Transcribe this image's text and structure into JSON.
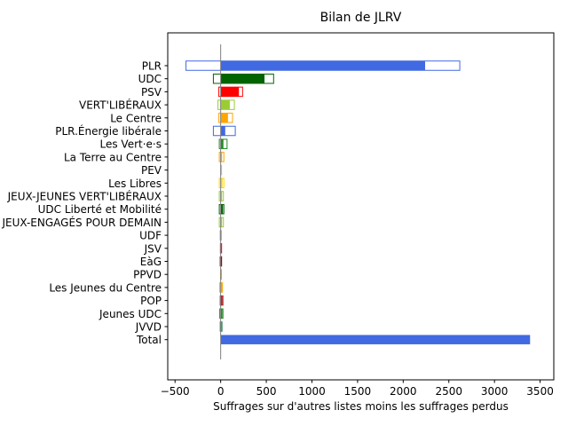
{
  "chart_data": {
    "type": "bar",
    "orientation": "horizontal",
    "title": "Bilan de JLRV",
    "xlabel": "Suffrages sur d'autres listes moins les suffrages perdus",
    "ylabel": "",
    "xlim": [
      -580,
      3650
    ],
    "xticks": [
      -500,
      0,
      500,
      1000,
      1500,
      2000,
      2500,
      3000,
      3500
    ],
    "grid": false,
    "categories": [
      "PLR",
      "UDC",
      "PSV",
      "VERT'LIBÉRAUX",
      "Le Centre",
      "PLR.Énergie libérale",
      "Les Vert·e·s",
      "La Terre au Centre",
      "PEV",
      "Les Libres",
      "JEUX-JEUNES VERT'LIBÉRAUX",
      "UDC Liberté et Mobilité",
      "JEUX-ENGAGÉS POUR DEMAIN",
      "UDF",
      "JSV",
      "EàG",
      "PPVD",
      "Les Jeunes du Centre",
      "POP",
      "Jeunes UDC",
      "JVVD",
      "Total"
    ],
    "series": [
      {
        "role": "net_filled",
        "values": [
          2240,
          480,
          200,
          100,
          80,
          50,
          30,
          15,
          5,
          20,
          15,
          25,
          15,
          5,
          8,
          10,
          5,
          15,
          20,
          18,
          10,
          3390
        ]
      },
      {
        "role": "gross_outline",
        "negative": [
          -380,
          -80,
          -20,
          -30,
          -20,
          -80,
          -15,
          -15,
          0,
          -15,
          -15,
          -15,
          -15,
          -5,
          -3,
          -5,
          -2,
          -10,
          -5,
          -10,
          -5,
          0
        ],
        "positive": [
          2620,
          580,
          240,
          150,
          130,
          160,
          70,
          35,
          5,
          35,
          30,
          35,
          30,
          5,
          10,
          10,
          5,
          20,
          25,
          25,
          15,
          0
        ]
      }
    ],
    "colors": [
      "#4169E1",
      "#006400",
      "#FF0000",
      "#9ACD32",
      "#FFA500",
      "#4169E1",
      "#228B22",
      "#FFA500",
      "#C0C0C0",
      "#FFD700",
      "#9ACD32",
      "#006400",
      "#9ACD32",
      "#999999",
      "#DC143C",
      "#8B0000",
      "#DAA520",
      "#FFA500",
      "#B22222",
      "#228B22",
      "#2E8B57",
      "#4169E1"
    ],
    "zero_line_color": "#808080"
  }
}
